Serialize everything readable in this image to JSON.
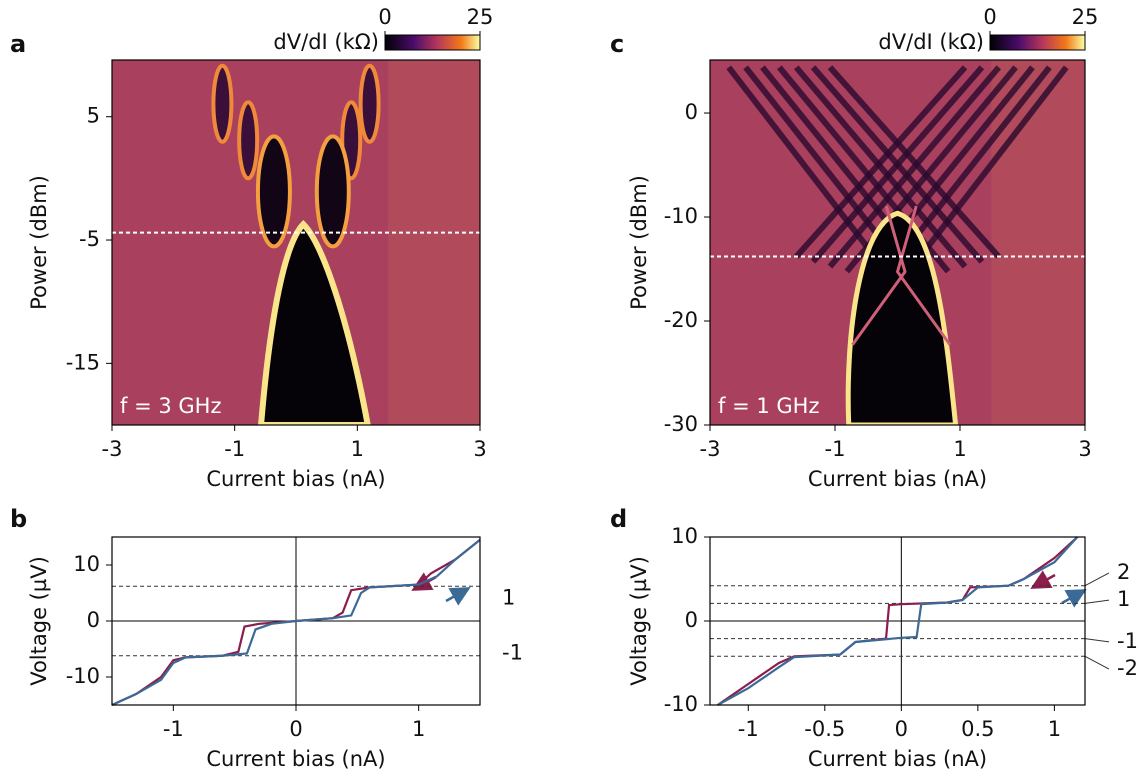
{
  "chart_data": [
    {
      "type": "heatmap",
      "panel": "a",
      "xlabel": "Current bias (nA)",
      "ylabel": "Power (dBm)",
      "xlim": [
        -3,
        3
      ],
      "xticks": [
        -3,
        -1,
        1,
        3
      ],
      "ylim": [
        -20,
        9.6
      ],
      "yticks": [
        -15,
        -5,
        5
      ],
      "hline": -4.4,
      "annotation": "f = 3 GHz",
      "colorbar": {
        "label": "dV/dI (kΩ)",
        "ticks": [
          0,
          25
        ]
      }
    },
    {
      "type": "line",
      "panel": "b",
      "xlabel": "Current bias (nA)",
      "ylabel": "Voltage (µV)",
      "xlim": [
        -1.5,
        1.5
      ],
      "xticks": [
        -1,
        0,
        1
      ],
      "ylim": [
        -15,
        15
      ],
      "yticks": [
        -10,
        0,
        10
      ],
      "hlines": [
        {
          "value": 6.2,
          "label": "1"
        },
        {
          "value": -6.2,
          "label": "-1"
        }
      ],
      "series": [
        {
          "color": "#8c1d4c",
          "x": [
            -1.5,
            -1.3,
            -1.1,
            -1.0,
            -0.9,
            -0.6,
            -0.47,
            -0.42,
            -0.3,
            0,
            0.3,
            0.38,
            0.45,
            0.6,
            1.0,
            1.1,
            1.3,
            1.5
          ],
          "values": [
            -15,
            -13,
            -10,
            -7,
            -6.5,
            -6.2,
            -5.5,
            -1,
            -0.5,
            0,
            0.5,
            1.5,
            5.5,
            6,
            6.5,
            8.5,
            11,
            14.5
          ]
        },
        {
          "color": "#3b6a96",
          "x": [
            -1.5,
            -1.3,
            -1.1,
            -1.0,
            -0.9,
            -0.6,
            -0.4,
            -0.33,
            -0.2,
            0,
            0.3,
            0.45,
            0.53,
            0.6,
            1.0,
            1.15,
            1.3,
            1.5
          ],
          "values": [
            -15,
            -13,
            -10.5,
            -7.5,
            -6.5,
            -6.2,
            -5.8,
            -1.5,
            -0.5,
            0,
            0.5,
            1,
            5,
            6,
            6.5,
            8,
            11,
            14.5
          ]
        }
      ]
    },
    {
      "type": "heatmap",
      "panel": "c",
      "xlabel": "Current bias (nA)",
      "ylabel": "Power (dBm)",
      "xlim": [
        -3,
        3
      ],
      "xticks": [
        -3,
        -1,
        1,
        3
      ],
      "ylim": [
        -30,
        5.1
      ],
      "yticks": [
        -30,
        -20,
        -10,
        0
      ],
      "hline": -13.8,
      "annotation": "f = 1 GHz",
      "colorbar": {
        "label": "dV/dI (kΩ)",
        "ticks": [
          0,
          25
        ]
      }
    },
    {
      "type": "line",
      "panel": "d",
      "xlabel": "Current bias (nA)",
      "ylabel": "Voltage (µV)",
      "xlim": [
        -1.25,
        1.2
      ],
      "xticks": [
        -1,
        -0.5,
        0,
        0.5,
        1
      ],
      "ylim": [
        -10,
        10
      ],
      "yticks": [
        -10,
        0,
        10
      ],
      "hlines": [
        {
          "value": 4.2,
          "label": "2"
        },
        {
          "value": 2.1,
          "label": "1"
        },
        {
          "value": -2.1,
          "label": "-1"
        },
        {
          "value": -4.2,
          "label": "-2"
        }
      ],
      "series": [
        {
          "color": "#8c1d4c",
          "x": [
            -1.2,
            -1.0,
            -0.8,
            -0.7,
            -0.4,
            -0.3,
            -0.1,
            -0.08,
            0,
            0.3,
            0.4,
            0.45,
            0.7,
            0.8,
            1.0,
            1.15
          ],
          "values": [
            -10,
            -7.5,
            -5,
            -4.2,
            -4,
            -2.5,
            -2.1,
            1.9,
            2,
            2.2,
            2.5,
            4,
            4.2,
            5,
            7.5,
            10
          ]
        },
        {
          "color": "#3b6a96",
          "x": [
            -1.2,
            -1.0,
            -0.8,
            -0.7,
            -0.4,
            -0.3,
            0,
            0.1,
            0.13,
            0.3,
            0.4,
            0.5,
            0.7,
            0.8,
            1.0,
            1.15
          ],
          "values": [
            -10,
            -8,
            -5.5,
            -4.3,
            -4,
            -2.5,
            -2,
            -1.9,
            2,
            2.2,
            2.5,
            4,
            4.2,
            5,
            7,
            10
          ]
        }
      ]
    }
  ]
}
